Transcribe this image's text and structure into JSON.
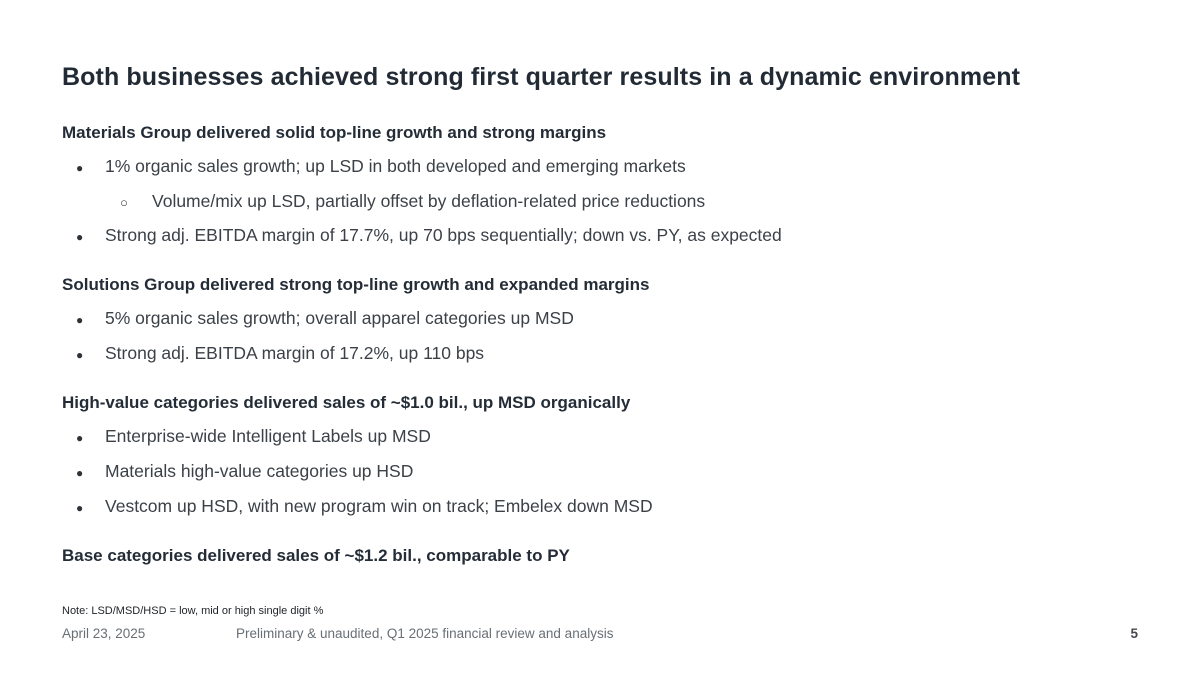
{
  "slide": {
    "title": "Both businesses achieved strong first quarter results in a dynamic environment",
    "sections": [
      {
        "heading": "Materials Group delivered solid top-line growth and strong margins",
        "bullets": [
          {
            "level": 1,
            "text": "1% organic sales growth; up LSD in both developed and emerging markets"
          },
          {
            "level": 2,
            "text": "Volume/mix up LSD, partially offset by deflation-related price reductions"
          },
          {
            "level": 1,
            "text": "Strong adj. EBITDA margin of 17.7%, up 70 bps sequentially; down vs. PY, as expected"
          }
        ]
      },
      {
        "heading": "Solutions Group delivered strong top-line growth and expanded margins",
        "bullets": [
          {
            "level": 1,
            "text": "5% organic sales growth; overall apparel categories up MSD"
          },
          {
            "level": 1,
            "text": "Strong adj. EBITDA margin of 17.2%, up 110 bps"
          }
        ]
      },
      {
        "heading": "High-value categories delivered sales of ~$1.0 bil., up MSD organically",
        "bullets": [
          {
            "level": 1,
            "text": "Enterprise-wide Intelligent Labels up MSD"
          },
          {
            "level": 1,
            "text": "Materials high-value categories up HSD"
          },
          {
            "level": 1,
            "text": "Vestcom up HSD, with new program win on track; Embelex down MSD"
          }
        ]
      },
      {
        "heading": "Base categories delivered sales of ~$1.2 bil., comparable to PY",
        "bullets": []
      }
    ],
    "note": "Note: LSD/MSD/HSD = low, mid or high single digit %",
    "footer": {
      "date": "April 23, 2025",
      "caption": "Preliminary & unaudited, Q1 2025 financial review and analysis",
      "page_number": "5"
    },
    "icons": {
      "bullet": "●",
      "sub_bullet": "○"
    },
    "colors": {
      "title": "#222b35",
      "heading": "#242d37",
      "body": "#3b4147",
      "footer_text": "#686f75",
      "note_text": "#1e2227",
      "background": "#ffffff"
    }
  }
}
